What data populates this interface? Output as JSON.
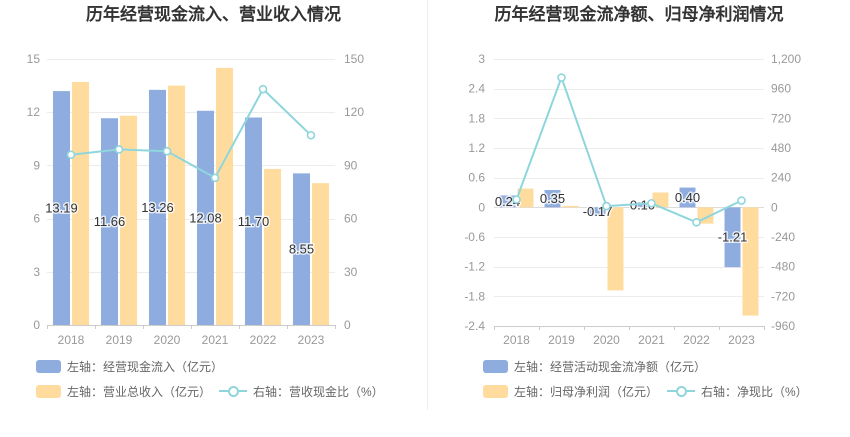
{
  "chart_data": [
    {
      "type": "bar",
      "title": "历年经营现金流入、营业收入情况",
      "categories": [
        "2018",
        "2019",
        "2020",
        "2021",
        "2022",
        "2023"
      ],
      "y_left": {
        "min": 0,
        "max": 15,
        "ticks": [
          0,
          3,
          6,
          9,
          12,
          15
        ],
        "tick_labels": [
          "0",
          "3",
          "6",
          "9",
          "12",
          "15"
        ]
      },
      "y_right": {
        "min": 0,
        "max": 150,
        "ticks": [
          0,
          30,
          60,
          90,
          120,
          150
        ],
        "tick_labels": [
          "0",
          "30",
          "60",
          "90",
          "120",
          "150"
        ]
      },
      "grid": true,
      "legend_position": "bottom",
      "series": [
        {
          "name": "左轴：经营现金流入（亿元）",
          "type": "bar",
          "axis": "left",
          "color": "#8eacde",
          "values": [
            13.19,
            11.66,
            13.26,
            12.08,
            11.7,
            8.55
          ],
          "data_labels": [
            "13.19",
            "11.66",
            "13.26",
            "12.08",
            "11.70",
            "8.55"
          ]
        },
        {
          "name": "左轴：营业总收入（亿元）",
          "type": "bar",
          "axis": "left",
          "color": "#ffdb9e",
          "values": [
            13.7,
            11.8,
            13.5,
            14.5,
            8.8,
            8.0
          ]
        },
        {
          "name": "右轴：营收现金比（%）",
          "type": "line",
          "axis": "right",
          "color": "#8fd6dc",
          "values": [
            96,
            99,
            98,
            83,
            133,
            107
          ]
        }
      ]
    },
    {
      "type": "bar",
      "title": "历年经营现金流净额、归母净利润情况",
      "categories": [
        "2018",
        "2019",
        "2020",
        "2021",
        "2022",
        "2023"
      ],
      "y_left": {
        "min": -2.4,
        "max": 3,
        "ticks": [
          3,
          2.4,
          1.8,
          1.2,
          0.6,
          0,
          -0.6,
          -1.2,
          -1.8,
          -2.4
        ],
        "tick_labels": [
          "3",
          "2.4",
          "1.8",
          "1.2",
          "0.6",
          "0",
          "-0.6",
          "-1.2",
          "-1.8",
          "-2.4"
        ]
      },
      "y_right": {
        "min": -960,
        "max": 1200,
        "ticks": [
          1200,
          960,
          720,
          480,
          240,
          0,
          -240,
          -480,
          -720,
          -960
        ],
        "tick_labels": [
          "1,200",
          "960",
          "720",
          "480",
          "240",
          "0",
          "-240",
          "-480",
          "-720",
          "-960"
        ]
      },
      "grid": true,
      "legend_position": "bottom",
      "series": [
        {
          "name": "左轴：经营活动现金流净额（亿元）",
          "type": "bar",
          "axis": "left",
          "color": "#8eacde",
          "values": [
            0.24,
            0.35,
            -0.17,
            0.1,
            0.4,
            -1.21
          ],
          "data_labels": [
            "0.24",
            "0.35",
            "-0.17",
            "0.10",
            "0.40",
            "-1.21"
          ]
        },
        {
          "name": "左轴：归母净利润（亿元）",
          "type": "bar",
          "axis": "left",
          "color": "#ffdb9e",
          "values": [
            0.38,
            0.03,
            -1.68,
            0.3,
            -0.33,
            -2.19
          ]
        },
        {
          "name": "右轴：净现比（%）",
          "type": "line",
          "axis": "right",
          "color": "#8fd6dc",
          "values": [
            63,
            1050,
            10,
            33,
            -121,
            55
          ]
        }
      ]
    }
  ]
}
